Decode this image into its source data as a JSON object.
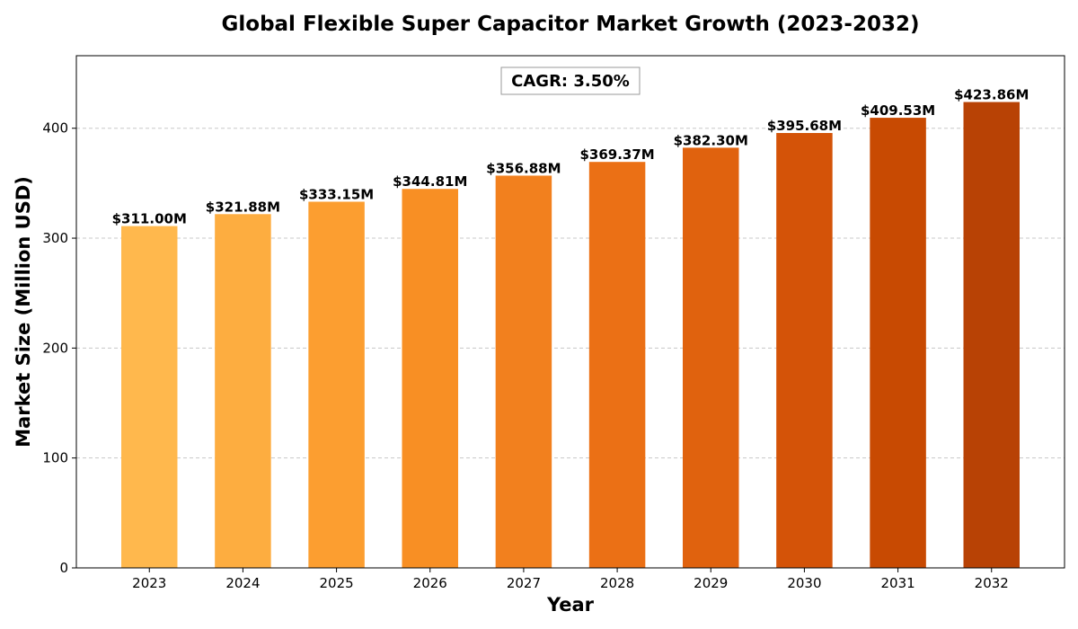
{
  "chart_data": {
    "type": "bar",
    "title": "Global Flexible Super Capacitor Market Growth (2023-2032)",
    "xlabel": "Year",
    "ylabel": "Market Size (Million USD)",
    "categories": [
      "2023",
      "2024",
      "2025",
      "2026",
      "2027",
      "2028",
      "2029",
      "2030",
      "2031",
      "2032"
    ],
    "values": [
      311.0,
      321.88,
      333.15,
      344.81,
      356.88,
      369.37,
      382.3,
      395.68,
      409.53,
      423.86
    ],
    "value_labels": [
      "$311.00M",
      "$321.88M",
      "$333.15M",
      "$344.81M",
      "$356.88M",
      "$369.37M",
      "$382.30M",
      "$395.68M",
      "$409.53M",
      "$423.86M"
    ],
    "bar_colors": [
      "#FFB84D",
      "#FDAD40",
      "#FC9E30",
      "#F88F24",
      "#F2801E",
      "#EB7015",
      "#E0620E",
      "#D45308",
      "#C84A02",
      "#B84205"
    ],
    "ylim": [
      0,
      466
    ],
    "yticks": [
      0,
      100,
      200,
      300,
      400
    ],
    "ytick_labels": [
      "0",
      "100",
      "200",
      "300",
      "400"
    ],
    "grid": "y-dashed",
    "annotation": "CAGR: 3.50%"
  }
}
